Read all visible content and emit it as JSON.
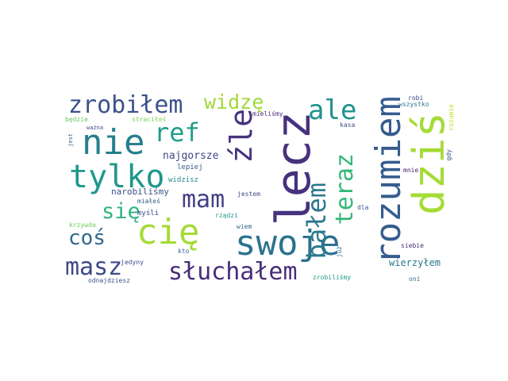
{
  "words": [
    {
      "text": "lecz",
      "color": "#46327e"
    },
    {
      "text": "dziś",
      "color": "#a5db36"
    },
    {
      "text": "swoje",
      "color": "#2c728e"
    },
    {
      "text": "rozumiem",
      "color": "#365c8d"
    },
    {
      "text": "nie",
      "color": "#277f8e"
    },
    {
      "text": "tylko",
      "color": "#1f988b"
    },
    {
      "text": "cię",
      "color": "#a5db36"
    },
    {
      "text": "zrobiłem",
      "color": "#3b528b"
    },
    {
      "text": "słuchałem",
      "color": "#472c7a"
    },
    {
      "text": "masz",
      "color": "#3e4989"
    },
    {
      "text": "ale",
      "color": "#21918c"
    },
    {
      "text": "teraz",
      "color": "#35b779"
    },
    {
      "text": "bałem",
      "color": "#2a788e"
    },
    {
      "text": "źle",
      "color": "#46327e"
    },
    {
      "text": "ref",
      "color": "#1f9e89"
    },
    {
      "text": "mam",
      "color": "#433e85"
    },
    {
      "text": "się",
      "color": "#2fb47c"
    },
    {
      "text": "coś",
      "color": "#31688e"
    },
    {
      "text": "widzę",
      "color": "#a0da39"
    },
    {
      "text": "najgorsze",
      "color": "#414487"
    },
    {
      "text": "narobiliśmy",
      "color": "#3b528b"
    },
    {
      "text": "wierzyłem",
      "color": "#2a788e"
    },
    {
      "text": "lepiej",
      "color": "#38598c"
    },
    {
      "text": "widzisz",
      "color": "#24868e"
    },
    {
      "text": "jestem",
      "color": "#3e4a89"
    },
    {
      "text": "miałeś",
      "color": "#365c8d"
    },
    {
      "text": "myśli",
      "color": "#3e4989"
    },
    {
      "text": "rządzi",
      "color": "#1f9a8a"
    },
    {
      "text": "krzywda",
      "color": "#6ccd5a"
    },
    {
      "text": "wiem",
      "color": "#306a8e"
    },
    {
      "text": "kto",
      "color": "#31688e"
    },
    {
      "text": "jedyny",
      "color": "#3e4a89"
    },
    {
      "text": "odnajdziesz",
      "color": "#3b528b"
    },
    {
      "text": "zrobiliśmy",
      "color": "#1e9b8a"
    },
    {
      "text": "oni",
      "color": "#2a778e"
    },
    {
      "text": "siebie",
      "color": "#472d7b"
    },
    {
      "text": "już",
      "color": "#2e6f8e"
    },
    {
      "text": "dla",
      "color": "#3b518b"
    },
    {
      "text": "mnie",
      "color": "#482576"
    },
    {
      "text": "gdy",
      "color": "#3b528b"
    },
    {
      "text": "kasa",
      "color": "#3b528b"
    },
    {
      "text": "wszystko",
      "color": "#2c728e"
    },
    {
      "text": "robi",
      "color": "#3e4a89"
    },
    {
      "text": "rozumie",
      "color": "#c2df23"
    },
    {
      "text": "mieliśmy",
      "color": "#482878"
    },
    {
      "text": "straciłeś",
      "color": "#7ad151"
    },
    {
      "text": "będzie",
      "color": "#5ec962"
    },
    {
      "text": "ważna",
      "color": "#3e4989"
    },
    {
      "text": "jest",
      "color": "#31688e"
    }
  ]
}
